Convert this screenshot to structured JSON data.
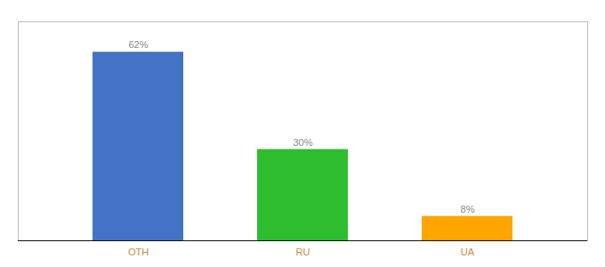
{
  "chart_data": {
    "type": "bar",
    "categories": [
      "OTH",
      "RU",
      "UA"
    ],
    "values": [
      62,
      30,
      8
    ],
    "value_labels": [
      "62%",
      "30%",
      "8%"
    ],
    "colors": [
      "#4472c4",
      "#2ebd2e",
      "#ffa500"
    ],
    "ylim": [
      0,
      72
    ],
    "data_labels": true,
    "tick_labels": "x"
  }
}
